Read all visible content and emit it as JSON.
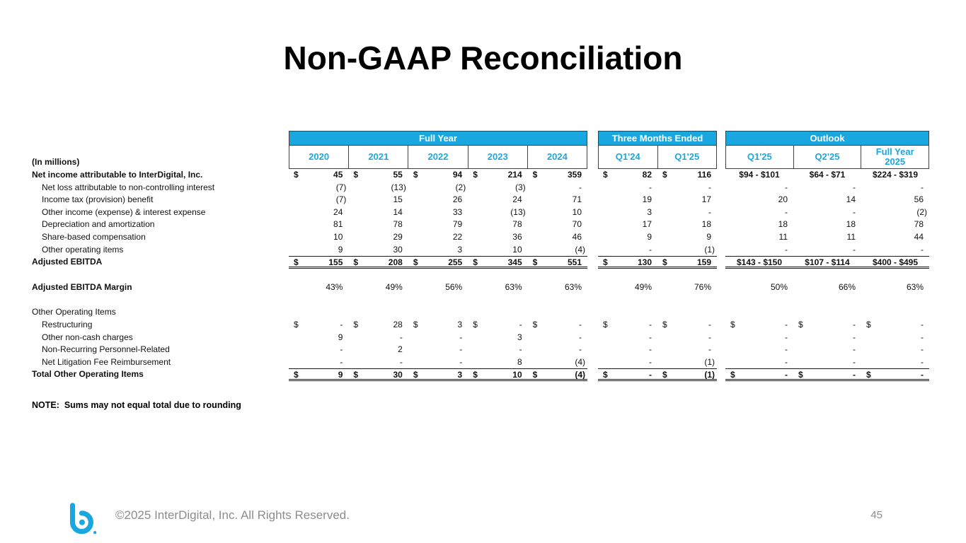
{
  "slide": {
    "title": "Non-GAAP Reconciliation",
    "note": "NOTE:  Sums may not equal total due to rounding",
    "footer": {
      "copyright": "©2025 InterDigital, Inc. All Rights Reserved.",
      "page": "45"
    }
  },
  "colors": {
    "accent": "#1AA7E0"
  },
  "table": {
    "units_label": "(In millions)",
    "groups": [
      {
        "id": "fy",
        "label": "Full Year",
        "columns": [
          "2020",
          "2021",
          "2022",
          "2023",
          "2024"
        ]
      },
      {
        "id": "tme",
        "label": "Three Months Ended",
        "columns": [
          "Q1'24",
          "Q1'25"
        ]
      },
      {
        "id": "out",
        "label": "Outlook",
        "columns": [
          "Q1'25",
          "Q2'25",
          "Full Year 2025"
        ]
      }
    ],
    "rows": [
      {
        "label": "Net income attributable to InterDigital, Inc.",
        "bold": true,
        "cells": [
          [
            "$",
            "45"
          ],
          [
            "$",
            "55"
          ],
          [
            "$",
            "94"
          ],
          [
            "$",
            "214"
          ],
          [
            "$",
            "359"
          ],
          [
            "$",
            "82"
          ],
          [
            "$",
            "116"
          ],
          [
            "",
            "$94 - $101"
          ],
          [
            "",
            "$64 - $71"
          ],
          [
            "",
            "$224 - $319"
          ]
        ]
      },
      {
        "label": "Net loss attributable to non-controlling interest",
        "indent": true,
        "cells": [
          [
            "",
            "(7)"
          ],
          [
            "",
            "(13)"
          ],
          [
            "",
            "(2)"
          ],
          [
            "",
            "(3)"
          ],
          [
            "",
            "-"
          ],
          [
            "",
            "-"
          ],
          [
            "",
            "-"
          ],
          [
            "",
            "-"
          ],
          [
            "",
            "-"
          ],
          [
            "",
            "-"
          ]
        ]
      },
      {
        "label": "Income tax (provision) benefit",
        "indent": true,
        "cells": [
          [
            "",
            "(7)"
          ],
          [
            "",
            "15"
          ],
          [
            "",
            "26"
          ],
          [
            "",
            "24"
          ],
          [
            "",
            "71"
          ],
          [
            "",
            "19"
          ],
          [
            "",
            "17"
          ],
          [
            "",
            "20"
          ],
          [
            "",
            "14"
          ],
          [
            "",
            "56"
          ]
        ]
      },
      {
        "label": "Other income (expense) & interest expense",
        "indent": true,
        "cells": [
          [
            "",
            "24"
          ],
          [
            "",
            "14"
          ],
          [
            "",
            "33"
          ],
          [
            "",
            "(13)"
          ],
          [
            "",
            "10"
          ],
          [
            "",
            "3"
          ],
          [
            "",
            "-"
          ],
          [
            "",
            "-"
          ],
          [
            "",
            "-"
          ],
          [
            "",
            "(2)"
          ]
        ]
      },
      {
        "label": "Depreciation and amortization",
        "indent": true,
        "cells": [
          [
            "",
            "81"
          ],
          [
            "",
            "78"
          ],
          [
            "",
            "79"
          ],
          [
            "",
            "78"
          ],
          [
            "",
            "70"
          ],
          [
            "",
            "17"
          ],
          [
            "",
            "18"
          ],
          [
            "",
            "18"
          ],
          [
            "",
            "18"
          ],
          [
            "",
            "78"
          ]
        ]
      },
      {
        "label": "Share-based compensation",
        "indent": true,
        "cells": [
          [
            "",
            "10"
          ],
          [
            "",
            "29"
          ],
          [
            "",
            "22"
          ],
          [
            "",
            "36"
          ],
          [
            "",
            "46"
          ],
          [
            "",
            "9"
          ],
          [
            "",
            "9"
          ],
          [
            "",
            "11"
          ],
          [
            "",
            "11"
          ],
          [
            "",
            "44"
          ]
        ]
      },
      {
        "label": "Other operating items",
        "indent": true,
        "cells": [
          [
            "",
            "9"
          ],
          [
            "",
            "30"
          ],
          [
            "",
            "3"
          ],
          [
            "",
            "10"
          ],
          [
            "",
            "(4)"
          ],
          [
            "",
            "-"
          ],
          [
            "",
            "(1)"
          ],
          [
            "",
            "-"
          ],
          [
            "",
            "-"
          ],
          [
            "",
            "-"
          ]
        ]
      },
      {
        "label": "Adjusted EBITDA",
        "bold": true,
        "total": true,
        "cells": [
          [
            "$",
            "155"
          ],
          [
            "$",
            "208"
          ],
          [
            "$",
            "255"
          ],
          [
            "$",
            "345"
          ],
          [
            "$",
            "551"
          ],
          [
            "$",
            "130"
          ],
          [
            "$",
            "159"
          ],
          [
            "",
            "$143 - $150"
          ],
          [
            "",
            "$107 - $114"
          ],
          [
            "",
            "$400 - $495"
          ]
        ]
      },
      {
        "spacer": true
      },
      {
        "label": "Adjusted EBITDA Margin",
        "boldLabel": true,
        "cells": [
          [
            "",
            "43%"
          ],
          [
            "",
            "49%"
          ],
          [
            "",
            "56%"
          ],
          [
            "",
            "63%"
          ],
          [
            "",
            "63%"
          ],
          [
            "",
            "49%"
          ],
          [
            "",
            "76%"
          ],
          [
            "",
            "50%"
          ],
          [
            "",
            "66%"
          ],
          [
            "",
            "63%"
          ]
        ]
      },
      {
        "spacer": true
      },
      {
        "label": "Other Operating Items",
        "cells": []
      },
      {
        "label": "Restructuring",
        "indent": true,
        "cells": [
          [
            "$",
            "-"
          ],
          [
            "$",
            "28"
          ],
          [
            "$",
            "3"
          ],
          [
            "$",
            "-"
          ],
          [
            "$",
            "-"
          ],
          [
            "$",
            "-"
          ],
          [
            "$",
            "-"
          ],
          [
            "$",
            "-"
          ],
          [
            "$",
            "-"
          ],
          [
            "$",
            "-"
          ]
        ]
      },
      {
        "label": "Other non-cash charges",
        "indent": true,
        "cells": [
          [
            "",
            "9"
          ],
          [
            "",
            "-"
          ],
          [
            "",
            "-"
          ],
          [
            "",
            "3"
          ],
          [
            "",
            "-"
          ],
          [
            "",
            "-"
          ],
          [
            "",
            "-"
          ],
          [
            "",
            "-"
          ],
          [
            "",
            "-"
          ],
          [
            "",
            "-"
          ]
        ]
      },
      {
        "label": "Non-Recurring Personnel-Related",
        "indent": true,
        "cells": [
          [
            "",
            "-"
          ],
          [
            "",
            "2"
          ],
          [
            "",
            "-"
          ],
          [
            "",
            "-"
          ],
          [
            "",
            "-"
          ],
          [
            "",
            "-"
          ],
          [
            "",
            "-"
          ],
          [
            "",
            "-"
          ],
          [
            "",
            "-"
          ],
          [
            "",
            "-"
          ]
        ]
      },
      {
        "label": "Net Litigation Fee Reimbursement",
        "indent": true,
        "cells": [
          [
            "",
            "-"
          ],
          [
            "",
            "-"
          ],
          [
            "",
            "-"
          ],
          [
            "",
            "8"
          ],
          [
            "",
            "(4)"
          ],
          [
            "",
            "-"
          ],
          [
            "",
            "(1)"
          ],
          [
            "",
            "-"
          ],
          [
            "",
            "-"
          ],
          [
            "",
            "-"
          ]
        ]
      },
      {
        "label": "Total Other Operating Items",
        "bold": true,
        "total": true,
        "cells": [
          [
            "$",
            "9"
          ],
          [
            "$",
            "30"
          ],
          [
            "$",
            "3"
          ],
          [
            "$",
            "10"
          ],
          [
            "$",
            "(4)"
          ],
          [
            "$",
            "-"
          ],
          [
            "$",
            "(1)"
          ],
          [
            "$",
            "-"
          ],
          [
            "$",
            "-"
          ],
          [
            "$",
            "-"
          ]
        ]
      }
    ]
  }
}
